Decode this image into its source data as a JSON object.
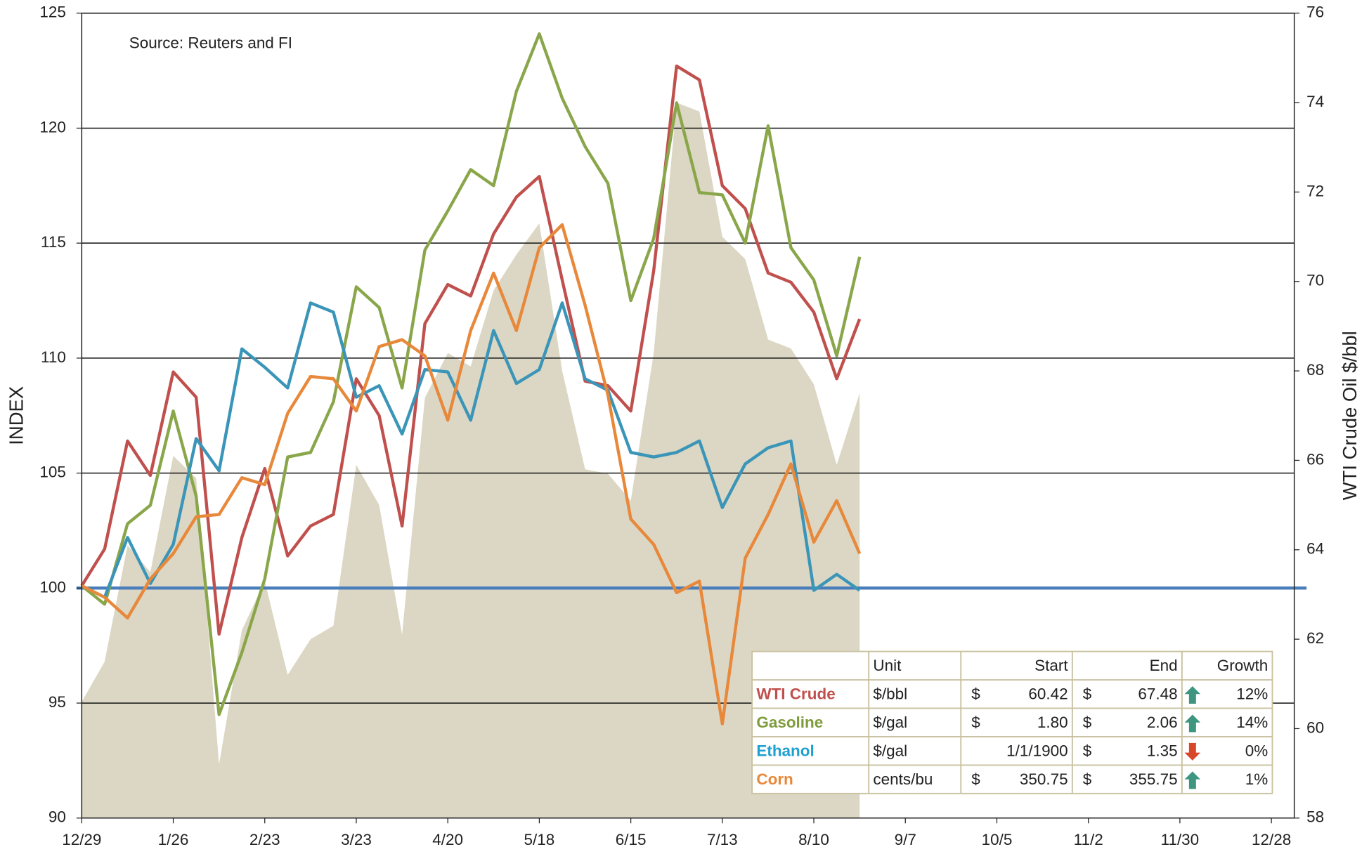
{
  "chart_data": {
    "type": "line",
    "annotation": "Source: Reuters and FI",
    "ylabel": "INDEX",
    "y2label": "WTI Crude Oil $/bbl",
    "categories": [
      "12/29",
      null,
      null,
      null,
      "1/26",
      null,
      null,
      null,
      "2/23",
      null,
      null,
      null,
      "3/23",
      null,
      null,
      null,
      "4/20",
      null,
      null,
      null,
      "5/18",
      null,
      null,
      null,
      "6/15",
      null,
      null,
      null,
      "7/13",
      null,
      null,
      null,
      "8/10",
      null,
      null,
      null,
      "9/7",
      null,
      null,
      null,
      "10/5",
      null,
      null,
      null,
      "11/2",
      null,
      null,
      null,
      "11/30",
      null,
      null,
      null,
      "12/28",
      null
    ],
    "ylim": [
      90,
      125
    ],
    "yticks": [
      90,
      95,
      100,
      105,
      110,
      115,
      120,
      125
    ],
    "y2lim": [
      58,
      76
    ],
    "y2ticks": [
      58,
      60,
      62,
      64,
      66,
      68,
      70,
      72,
      74,
      76
    ],
    "grid": true,
    "baseline": 100,
    "baseline_color": "#4a7ebb",
    "series": [
      {
        "type": "area",
        "axis": "y2",
        "color": "#dcd7c4",
        "values": [
          60.6,
          61.5,
          64.1,
          63.5,
          66.1,
          65.6,
          59.2,
          62.2,
          63.3,
          61.2,
          62.0,
          62.3,
          65.9,
          65.0,
          62.1,
          67.4,
          68.4,
          68.1,
          69.8,
          70.6,
          71.3,
          68.0,
          65.8,
          65.7,
          65.1,
          68.4,
          74.0,
          73.8,
          71.0,
          70.5,
          68.7,
          68.5,
          67.7,
          65.9,
          67.5,
          null,
          null,
          null,
          null,
          null,
          null,
          null,
          null,
          null,
          null,
          null,
          null,
          null,
          null,
          null,
          null,
          null,
          null,
          null
        ]
      },
      {
        "name": "WTI Crude",
        "color": "#c0504d",
        "values": [
          100.1,
          101.7,
          106.4,
          104.9,
          109.4,
          108.3,
          98.0,
          102.2,
          105.2,
          101.4,
          102.7,
          103.2,
          109.1,
          107.5,
          102.7,
          111.5,
          113.2,
          112.7,
          115.4,
          117.0,
          117.9,
          113.4,
          109.0,
          108.8,
          107.7,
          113.8,
          122.7,
          122.1,
          117.5,
          116.5,
          113.7,
          113.3,
          112.0,
          109.1,
          111.7,
          null,
          null,
          null,
          null,
          null,
          null,
          null,
          null,
          null,
          null,
          null,
          null,
          null,
          null,
          null,
          null,
          null,
          null,
          null
        ]
      },
      {
        "name": "Gasoline",
        "color": "#8aa64a",
        "values": [
          100.1,
          99.3,
          102.8,
          103.6,
          107.7,
          104.0,
          94.5,
          97.2,
          100.4,
          105.7,
          105.9,
          108.1,
          113.1,
          112.2,
          108.7,
          114.7,
          116.4,
          118.2,
          117.5,
          121.6,
          124.1,
          121.3,
          119.2,
          117.6,
          112.5,
          115.2,
          121.1,
          117.2,
          117.1,
          115.0,
          120.1,
          114.8,
          113.4,
          110.1,
          114.4,
          null,
          null,
          null,
          null,
          null,
          null,
          null,
          null,
          null,
          null,
          null,
          null,
          null,
          null,
          null,
          null,
          null,
          null,
          null
        ]
      },
      {
        "name": "Ethanol",
        "color": "#3a95b8",
        "values": [
          100.1,
          99.6,
          102.2,
          100.2,
          101.9,
          106.5,
          105.1,
          110.4,
          109.6,
          108.7,
          112.4,
          112.0,
          108.3,
          108.8,
          106.7,
          109.5,
          109.4,
          107.3,
          111.2,
          108.9,
          109.5,
          112.4,
          109.1,
          108.6,
          105.9,
          105.7,
          105.9,
          106.4,
          103.5,
          105.4,
          106.1,
          106.4,
          99.9,
          100.6,
          99.9,
          null,
          null,
          null,
          null,
          null,
          null,
          null,
          null,
          null,
          null,
          null,
          null,
          null,
          null,
          null,
          null,
          null,
          null,
          null
        ]
      },
      {
        "name": "Corn",
        "color": "#e8883a",
        "values": [
          100.1,
          99.6,
          98.7,
          100.4,
          101.5,
          103.1,
          103.2,
          104.8,
          104.5,
          107.6,
          109.2,
          109.1,
          107.7,
          110.5,
          110.8,
          110.1,
          107.3,
          111.2,
          113.7,
          111.2,
          114.8,
          115.8,
          112.3,
          108.4,
          103.0,
          101.9,
          99.8,
          100.3,
          94.1,
          101.3,
          103.2,
          105.4,
          102.0,
          103.8,
          101.5,
          null,
          null,
          null,
          null,
          null,
          null,
          null,
          null,
          null,
          null,
          null,
          null,
          null,
          null,
          null,
          null,
          null,
          null,
          null
        ]
      }
    ]
  },
  "table": {
    "header": [
      "Unit",
      "Start",
      "End",
      "Growth"
    ],
    "rows": [
      {
        "name": "WTI Crude",
        "color": "#c0504d",
        "unit": "$/bbl",
        "start_currency": "$",
        "start": "60.42",
        "end_currency": "$",
        "end": "67.48",
        "trend": "up",
        "growth": "12%"
      },
      {
        "name": "Gasoline",
        "color": "#7f9c3c",
        "unit": "$/gal",
        "start_currency": "$",
        "start": "1.80",
        "end_currency": "$",
        "end": "2.06",
        "trend": "up",
        "growth": "14%"
      },
      {
        "name": "Ethanol",
        "color": "#1ea0d0",
        "unit": "$/gal",
        "start_currency": null,
        "start": "1/1/1900",
        "end_currency": "$",
        "end": "1.35",
        "trend": "down",
        "growth": "0%"
      },
      {
        "name": "Corn",
        "color": "#e8883a",
        "unit": "cents/bu",
        "start_currency": "$",
        "start": "350.75",
        "end_currency": "$",
        "end": "355.75",
        "trend": "up",
        "growth": "1%"
      }
    ]
  }
}
